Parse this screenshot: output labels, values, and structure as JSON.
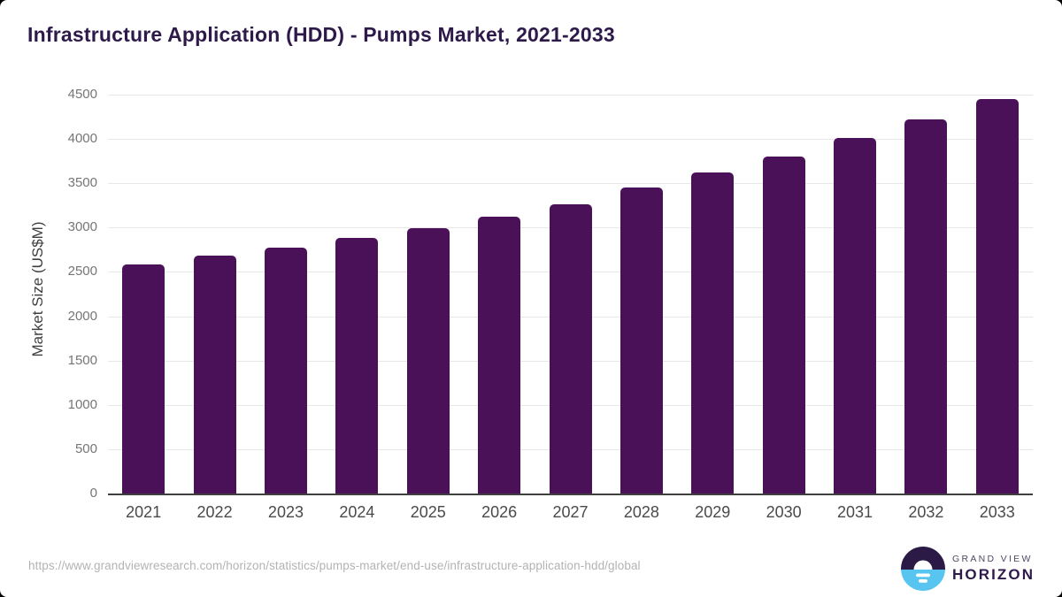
{
  "page": {
    "title": "Infrastructure Application (HDD) - Pumps Market, 2021-2033"
  },
  "chart_data": {
    "type": "bar",
    "title": "Infrastructure Application (HDD) - Pumps Market, 2021-2033",
    "categories": [
      "2021",
      "2022",
      "2023",
      "2024",
      "2025",
      "2026",
      "2027",
      "2028",
      "2029",
      "2030",
      "2031",
      "2032",
      "2033"
    ],
    "values": [
      2588,
      2680,
      2774,
      2879,
      2994,
      3128,
      3267,
      3448,
      3620,
      3805,
      4008,
      4224,
      4455
    ],
    "xlabel": "",
    "ylabel": "Market Size (US$M)",
    "ylim": [
      0,
      4500
    ],
    "yticks": [
      0,
      500,
      1000,
      1500,
      2000,
      2500,
      3000,
      3500,
      4000,
      4500
    ],
    "grid": "horizontal",
    "legend_position": "none",
    "bar_color": "#4a1158"
  },
  "footer": {
    "source_url": "https://www.grandviewresearch.com/horizon/statistics/pumps-market/end-use/infrastructure-application-hdd/global",
    "logo": {
      "brand_line1": "GRAND VIEW",
      "brand_line2": "HORIZON"
    }
  },
  "colors": {
    "title_text": "#2e1a4a",
    "bar_fill": "#4a1158",
    "gridline": "#e7e7e7",
    "axis_line": "#3f3f3f",
    "y_tick_text": "#757575",
    "x_tick_text": "#4a4a4a",
    "url_text": "#b3b3b3",
    "logo_top_half": "#2b1a46",
    "logo_bottom_half": "#58c4f0",
    "logo_brand_line1_text": "#514764",
    "logo_brand_line2_text": "#2e1a4a"
  }
}
